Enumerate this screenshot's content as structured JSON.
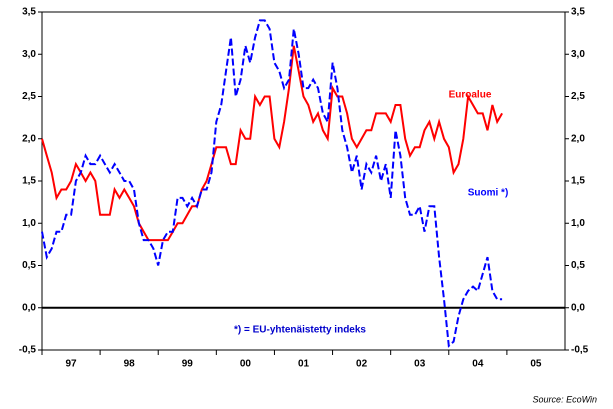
{
  "chart_data": {
    "type": "line",
    "categories": [
      "97",
      "98",
      "99",
      "00",
      "01",
      "02",
      "03",
      "04",
      "05"
    ],
    "x": [
      1997,
      1997.083,
      1997.167,
      1997.25,
      1997.333,
      1997.417,
      1997.5,
      1997.583,
      1997.667,
      1997.75,
      1997.833,
      1997.917,
      1998,
      1998.083,
      1998.167,
      1998.25,
      1998.333,
      1998.417,
      1998.5,
      1998.583,
      1998.667,
      1998.75,
      1998.833,
      1998.917,
      1999,
      1999.083,
      1999.167,
      1999.25,
      1999.333,
      1999.417,
      1999.5,
      1999.583,
      1999.667,
      1999.75,
      1999.833,
      1999.917,
      2000,
      2000.083,
      2000.167,
      2000.25,
      2000.333,
      2000.417,
      2000.5,
      2000.583,
      2000.667,
      2000.75,
      2000.833,
      2000.917,
      2001,
      2001.083,
      2001.167,
      2001.25,
      2001.333,
      2001.417,
      2001.5,
      2001.583,
      2001.667,
      2001.75,
      2001.833,
      2001.917,
      2002,
      2002.083,
      2002.167,
      2002.25,
      2002.333,
      2002.417,
      2002.5,
      2002.583,
      2002.667,
      2002.75,
      2002.833,
      2002.917,
      2003,
      2003.083,
      2003.167,
      2003.25,
      2003.333,
      2003.417,
      2003.5,
      2003.583,
      2003.667,
      2003.75,
      2003.833,
      2003.917,
      2004,
      2004.083,
      2004.167,
      2004.25,
      2004.333,
      2004.417,
      2004.5,
      2004.583,
      2004.667,
      2004.75,
      2004.833,
      2004.917
    ],
    "series": [
      {
        "name": "Euroalue",
        "color": "#ff0000",
        "dashed": false,
        "values": [
          2.0,
          1.8,
          1.6,
          1.3,
          1.4,
          1.4,
          1.5,
          1.7,
          1.6,
          1.5,
          1.6,
          1.5,
          1.1,
          1.1,
          1.1,
          1.4,
          1.3,
          1.4,
          1.3,
          1.2,
          1.0,
          0.9,
          0.8,
          0.8,
          0.8,
          0.8,
          0.8,
          0.9,
          1.0,
          1.0,
          1.1,
          1.2,
          1.2,
          1.4,
          1.5,
          1.7,
          1.9,
          1.9,
          1.9,
          1.7,
          1.7,
          2.1,
          2.0,
          2.0,
          2.5,
          2.4,
          2.5,
          2.5,
          2.0,
          1.9,
          2.2,
          2.6,
          3.1,
          2.8,
          2.5,
          2.4,
          2.2,
          2.3,
          2.1,
          2.0,
          2.6,
          2.5,
          2.5,
          2.3,
          2.0,
          1.9,
          2.0,
          2.1,
          2.1,
          2.3,
          2.3,
          2.3,
          2.2,
          2.4,
          2.4,
          2.0,
          1.8,
          1.9,
          1.9,
          2.1,
          2.2,
          2.0,
          2.2,
          2.0,
          1.9,
          1.6,
          1.7,
          2.0,
          2.5,
          2.4,
          2.3,
          2.3,
          2.1,
          2.4,
          2.2,
          2.3
        ]
      },
      {
        "name": "Suomi *)",
        "color": "#0000ff",
        "dashed": true,
        "values": [
          0.9,
          0.6,
          0.7,
          0.9,
          0.9,
          1.1,
          1.1,
          1.5,
          1.6,
          1.8,
          1.7,
          1.7,
          1.8,
          1.7,
          1.6,
          1.7,
          1.6,
          1.5,
          1.5,
          1.4,
          1.0,
          0.8,
          0.8,
          0.7,
          0.5,
          0.8,
          0.9,
          0.9,
          1.3,
          1.3,
          1.2,
          1.3,
          1.2,
          1.4,
          1.4,
          1.6,
          2.2,
          2.4,
          2.8,
          3.2,
          2.5,
          2.7,
          3.1,
          2.9,
          3.2,
          3.4,
          3.4,
          3.3,
          2.9,
          2.8,
          2.6,
          2.7,
          3.3,
          3.0,
          2.6,
          2.6,
          2.7,
          2.6,
          2.3,
          2.2,
          2.9,
          2.6,
          2.1,
          1.9,
          1.6,
          1.8,
          1.4,
          1.7,
          1.6,
          1.8,
          1.5,
          1.7,
          1.3,
          2.1,
          1.8,
          1.3,
          1.1,
          1.1,
          1.2,
          0.9,
          1.2,
          1.2,
          0.6,
          0.1,
          -0.45,
          -0.4,
          -0.1,
          0.1,
          0.2,
          0.25,
          0.2,
          0.4,
          0.6,
          0.2,
          0.1,
          0.1
        ]
      }
    ],
    "xlim": [
      1997,
      2006
    ],
    "ylim": [
      -0.5,
      3.5
    ],
    "yticks": [
      {
        "value": -0.5,
        "label": "-0,5"
      },
      {
        "value": 0,
        "label": "0,0"
      },
      {
        "value": 0.5,
        "label": "0,5"
      },
      {
        "value": 1,
        "label": "1,0"
      },
      {
        "value": 1.5,
        "label": "1,5"
      },
      {
        "value": 2,
        "label": "2,0"
      },
      {
        "value": 2.5,
        "label": "2,5"
      },
      {
        "value": 3,
        "label": "3,0"
      },
      {
        "value": 3.5,
        "label": "3,5"
      }
    ],
    "y2lim": [
      -0.5,
      3.5
    ],
    "y2ticks": [
      {
        "value": -0.5,
        "label": "-0,5"
      },
      {
        "value": 0,
        "label": "0,0"
      },
      {
        "value": 0.5,
        "label": "0,5"
      },
      {
        "value": 1,
        "label": "1,0"
      },
      {
        "value": 1.5,
        "label": "1,5"
      },
      {
        "value": 2,
        "label": "2,0"
      },
      {
        "value": 2.5,
        "label": "2,5"
      },
      {
        "value": 3,
        "label": "3,0"
      },
      {
        "value": 3.5,
        "label": "3,5"
      }
    ],
    "annotations": [
      "*) = EU-yhtenäistetty indeks",
      "Source: EcoWin"
    ],
    "grid": false
  }
}
